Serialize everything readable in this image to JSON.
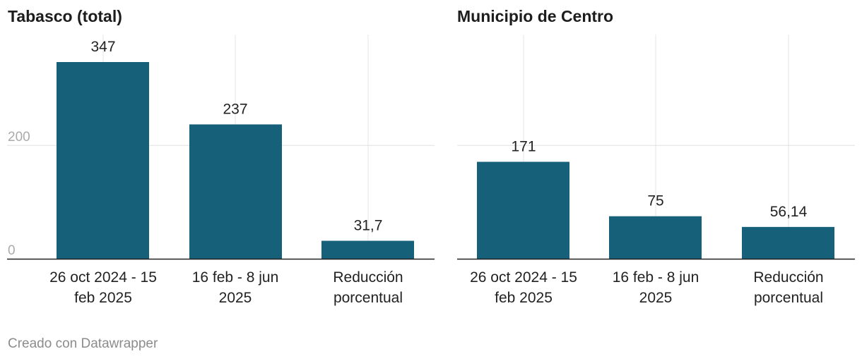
{
  "chart_data": [
    {
      "type": "bar",
      "title": "Tabasco (total)",
      "categories": [
        "26 oct 2024 - 15 feb 2025",
        "16 feb - 8 jun 2025",
        "Reducción porcentual"
      ],
      "category_lines": [
        [
          "26 oct 2024 - 15",
          "feb 2025"
        ],
        [
          "16 feb - 8 jun",
          "2025"
        ],
        [
          "Reducción",
          "porcentual"
        ]
      ],
      "values": [
        347,
        237,
        31.7
      ],
      "value_labels": [
        "347",
        "237",
        "31,7"
      ],
      "ylim": [
        0,
        390
      ],
      "yticks": [
        0,
        200
      ],
      "ytick_labels": [
        "0",
        "200"
      ],
      "grid": true,
      "bar_color": "#17607a"
    },
    {
      "type": "bar",
      "title": "Municipio de Centro",
      "categories": [
        "26 oct 2024 - 15 feb 2025",
        "16 feb - 8 jun 2025",
        "Reducción porcentual"
      ],
      "category_lines": [
        [
          "26 oct 2024 - 15",
          "feb 2025"
        ],
        [
          "16 feb - 8 jun",
          "2025"
        ],
        [
          "Reducción",
          "porcentual"
        ]
      ],
      "values": [
        171,
        75,
        56.14
      ],
      "value_labels": [
        "171",
        "75",
        "56,14"
      ],
      "ylim": [
        0,
        390
      ],
      "yticks": [
        0,
        200
      ],
      "ytick_labels": [
        "",
        ""
      ],
      "grid": true,
      "bar_color": "#17607a"
    }
  ],
  "footer": "Creado con Datawrapper"
}
